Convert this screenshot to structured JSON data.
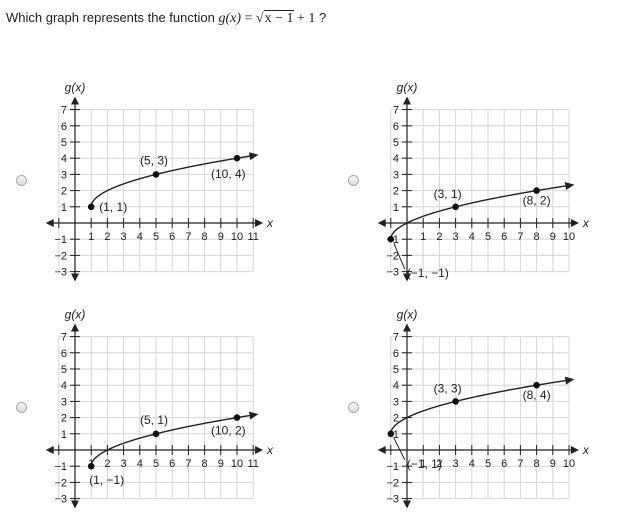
{
  "question": {
    "prefix": "Which graph represents the function ",
    "func": "g(x)",
    "equals": "=",
    "radicand": "x − 1",
    "tail": "+ 1",
    "suffix": "?"
  },
  "options": [
    {
      "id": "A",
      "ylabel": "g(x)",
      "xlabel": "x",
      "xlim": [
        -1.5,
        11.3
      ],
      "ylim": [
        -3.3,
        7.5
      ],
      "xticks": [
        1,
        2,
        3,
        4,
        5,
        6,
        7,
        8,
        9,
        10,
        11
      ],
      "yticks": [
        -3,
        -2,
        -1,
        1,
        2,
        3,
        4,
        5,
        6,
        7
      ],
      "points": [
        {
          "x": 1,
          "y": 1,
          "label": "(1, 1)"
        },
        {
          "x": 5,
          "y": 3,
          "label": "(5, 3)"
        },
        {
          "x": 10,
          "y": 4,
          "label": "(10, 4)"
        }
      ]
    },
    {
      "id": "B",
      "ylabel": "g(x)",
      "xlabel": "x",
      "xlim": [
        -1.5,
        10.3
      ],
      "ylim": [
        -3.3,
        7.5
      ],
      "xticks": [
        1,
        2,
        3,
        4,
        5,
        6,
        7,
        8,
        9,
        10
      ],
      "yticks": [
        -3,
        -2,
        -1,
        1,
        2,
        3,
        4,
        5,
        6,
        7
      ],
      "points": [
        {
          "x": -1,
          "y": -1,
          "label": "(−1, −1)"
        },
        {
          "x": 3,
          "y": 1,
          "label": "(3, 1)"
        },
        {
          "x": 8,
          "y": 2,
          "label": "(8, 2)"
        }
      ]
    },
    {
      "id": "C",
      "ylabel": "g(x)",
      "xlabel": "x",
      "xlim": [
        -1.5,
        11.3
      ],
      "ylim": [
        -3.3,
        7.5
      ],
      "xticks": [
        1,
        2,
        3,
        4,
        5,
        6,
        7,
        8,
        9,
        10,
        11
      ],
      "yticks": [
        -3,
        -2,
        -1,
        1,
        2,
        3,
        4,
        5,
        6,
        7
      ],
      "points": [
        {
          "x": 1,
          "y": -1,
          "label": "(1, −1)"
        },
        {
          "x": 5,
          "y": 1,
          "label": "(5, 1)"
        },
        {
          "x": 10,
          "y": 2,
          "label": "(10, 2)"
        }
      ]
    },
    {
      "id": "D",
      "ylabel": "g(x)",
      "xlabel": "x",
      "xlim": [
        -1.5,
        10.3
      ],
      "ylim": [
        -3.3,
        7.5
      ],
      "xticks": [
        1,
        2,
        3,
        4,
        5,
        6,
        7,
        8,
        9,
        10
      ],
      "yticks": [
        -3,
        -2,
        -1,
        1,
        2,
        3,
        4,
        5,
        6,
        7
      ],
      "points": [
        {
          "x": -1,
          "y": 1,
          "label": "(−1, 1)"
        },
        {
          "x": 3,
          "y": 3,
          "label": "(3, 3)"
        },
        {
          "x": 8,
          "y": 4,
          "label": "(8, 4)"
        }
      ]
    }
  ]
}
